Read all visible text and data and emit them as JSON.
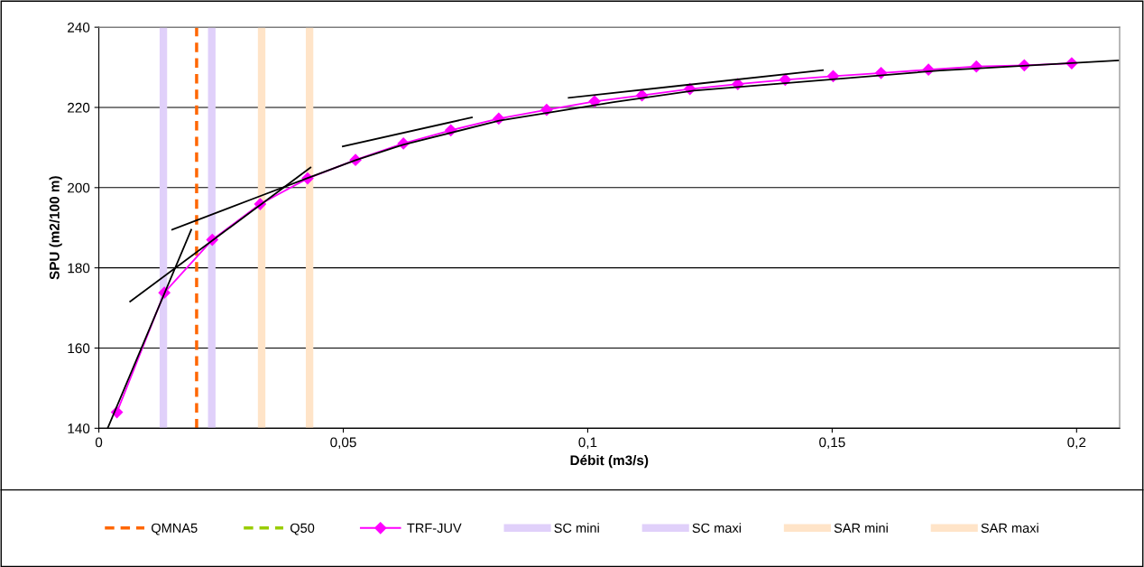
{
  "chart_data": {
    "type": "line",
    "xlabel": "Débit (m3/s)",
    "ylabel": "SPU (m2/100 m)",
    "xlim": [
      0,
      0.2088
    ],
    "ylim": [
      140,
      240
    ],
    "xticks": [
      0,
      {
        "value": 0.05,
        "label": "0,05"
      },
      {
        "value": 0.1,
        "label": "0,1"
      },
      {
        "value": 0.15,
        "label": "0,15"
      },
      {
        "value": 0.2,
        "label": "0,2"
      }
    ],
    "yticks": [
      140,
      160,
      180,
      200,
      220,
      240
    ],
    "grid": "y",
    "legend": "bottom",
    "ref_lines": [
      {
        "axis": "x",
        "value": 0.02,
        "label": "QMNA5",
        "color": "#ff6600",
        "line_style": "dashed"
      },
      {
        "axis": "x",
        "value": null,
        "label": "Q50",
        "color": "#99cc00",
        "line_style": "dashed"
      },
      {
        "axis": "x",
        "value": 0.0132,
        "label": "SC mini",
        "color": "#e0d0fa",
        "line_style": "solid"
      },
      {
        "axis": "x",
        "value": 0.0231,
        "label": "SC maxi",
        "color": "#e0d0fa",
        "line_style": "solid"
      },
      {
        "axis": "x",
        "value": 0.0333,
        "label": "SAR mini",
        "color": "#ffe4c8",
        "line_style": "solid"
      },
      {
        "axis": "x",
        "value": 0.0431,
        "label": "SAR maxi",
        "color": "#ffe4c8",
        "line_style": "solid"
      }
    ],
    "series": [
      {
        "name": "TRF-JUV",
        "color": "#ff00ff",
        "marker": "diamond",
        "x": [
          0.0037,
          0.0134,
          0.0232,
          0.033,
          0.0427,
          0.0525,
          0.0623,
          0.072,
          0.0818,
          0.0916,
          0.1014,
          0.1111,
          0.1209,
          0.1307,
          0.1404,
          0.1502,
          0.16,
          0.1697,
          0.1795,
          0.1893,
          0.199
        ],
        "values": [
          144.0,
          173.8,
          187.0,
          195.9,
          202.3,
          206.9,
          211.0,
          214.3,
          217.2,
          219.4,
          221.5,
          223.0,
          224.6,
          225.8,
          226.9,
          227.8,
          228.6,
          229.4,
          230.2,
          230.5,
          231.0
        ]
      },
      {
        "color": "#000000",
        "marker": "none",
        "x": [
          0.0018,
          0.0189
        ],
        "values": [
          140,
          189.5
        ]
      },
      {
        "color": "#000000",
        "marker": "none",
        "x": [
          0.0064,
          0.0433
        ],
        "values": [
          171.6,
          205.0
        ]
      },
      {
        "color": "#000000",
        "marker": "none",
        "x": [
          0.0499,
          0.0763
        ],
        "values": [
          210.3,
          217.5
        ]
      },
      {
        "color": "#000000",
        "marker": "none",
        "x": [
          0.0961,
          0.1481
        ],
        "values": [
          222.4,
          229.3
        ]
      },
      {
        "color": "#000000",
        "marker": "none",
        "x": [
          0.015,
          0.0315,
          0.0425,
          0.0524,
          0.0622,
          0.0819,
          0.1053,
          0.1217,
          0.172,
          0.2085
        ],
        "values": [
          189.5,
          197.2,
          202.3,
          206.8,
          210.7,
          216.7,
          221.3,
          224.2,
          229.2,
          231.7
        ]
      }
    ]
  }
}
